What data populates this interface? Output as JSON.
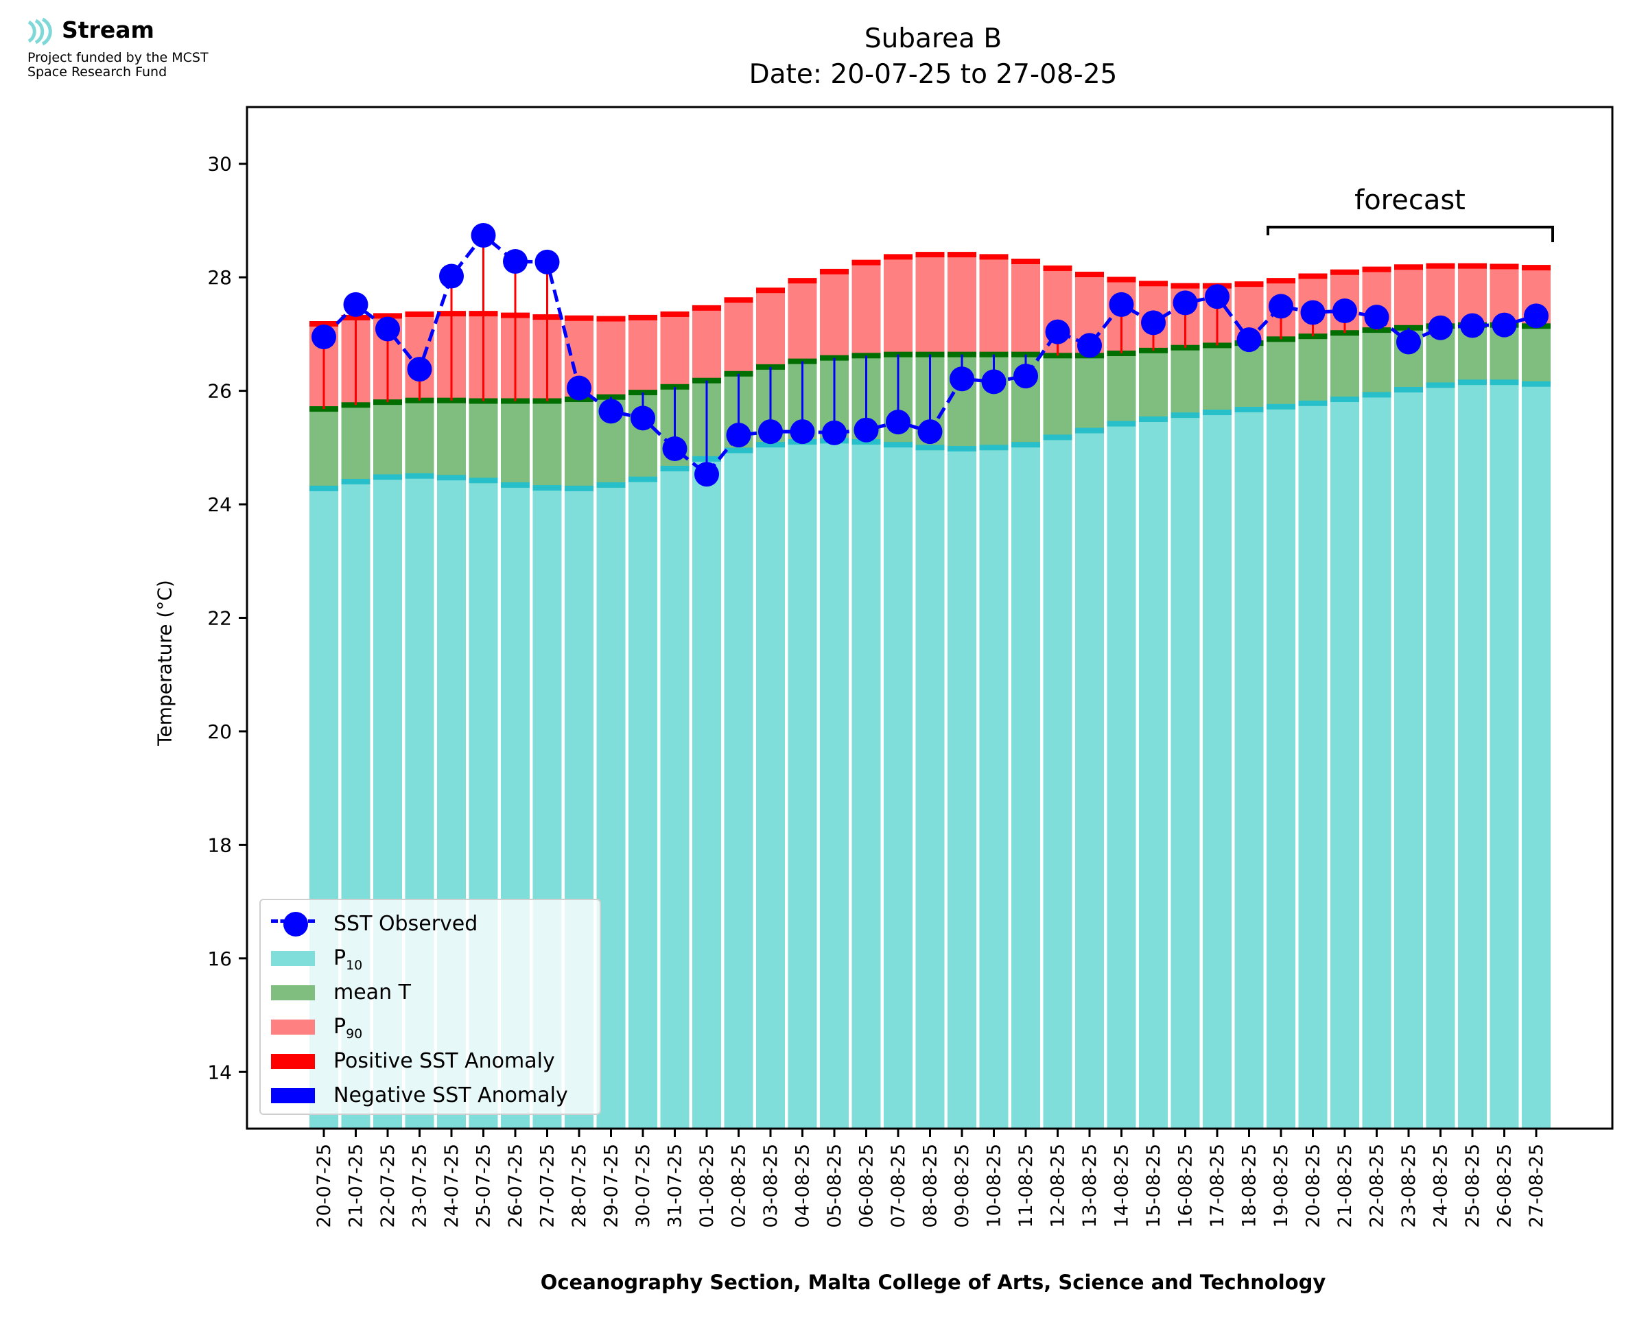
{
  "logo": {
    "name": "Stream",
    "funding_line_1": "Project funded by the MCST",
    "funding_line_2": "Space Research Fund"
  },
  "chart_data": {
    "type": "bar",
    "title": "Subarea B",
    "subtitle": "Date: 20-07-25 to 27-08-25",
    "xlabel": "Oceanography Section, Malta College of Arts, Science and Technology",
    "ylabel": "Temperature (°C)",
    "ylim": [
      13,
      31
    ],
    "yticks": [
      14,
      16,
      18,
      20,
      22,
      24,
      26,
      28,
      30
    ],
    "grid": false,
    "legend_position": "lower-left",
    "forecast_label": "forecast",
    "forecast_start": "19-08-25",
    "forecast_end": "27-08-25",
    "colors": {
      "p10": "#80deda",
      "p10_edge": "#27bfc9",
      "mean": "#80be80",
      "mean_edge": "#006e00",
      "p90": "#ff8080",
      "p90_edge": "#ff0000",
      "observed": "#0000ff",
      "positive_anomaly": "#ff0000",
      "negative_anomaly": "#0000ff"
    },
    "categories": [
      "20-07-25",
      "21-07-25",
      "22-07-25",
      "23-07-25",
      "24-07-25",
      "25-07-25",
      "26-07-25",
      "27-07-25",
      "28-07-25",
      "29-07-25",
      "30-07-25",
      "31-07-25",
      "01-08-25",
      "02-08-25",
      "03-08-25",
      "04-08-25",
      "05-08-25",
      "06-08-25",
      "07-08-25",
      "08-08-25",
      "09-08-25",
      "10-08-25",
      "11-08-25",
      "12-08-25",
      "13-08-25",
      "14-08-25",
      "15-08-25",
      "16-08-25",
      "17-08-25",
      "18-08-25",
      "19-08-25",
      "20-08-25",
      "21-08-25",
      "22-08-25",
      "23-08-25",
      "24-08-25",
      "25-08-25",
      "26-08-25",
      "27-08-25"
    ],
    "series": [
      {
        "name": "P10",
        "type": "bar",
        "values": [
          24.28,
          24.4,
          24.48,
          24.5,
          24.47,
          24.42,
          24.34,
          24.29,
          24.28,
          24.34,
          24.44,
          24.63,
          24.8,
          24.95,
          25.05,
          25.1,
          25.12,
          25.1,
          25.05,
          25.0,
          24.98,
          25.0,
          25.05,
          25.18,
          25.3,
          25.42,
          25.5,
          25.57,
          25.62,
          25.67,
          25.72,
          25.78,
          25.85,
          25.93,
          26.02,
          26.1,
          26.15,
          26.15,
          26.12
        ]
      },
      {
        "name": "mean T",
        "type": "bar",
        "values": [
          25.68,
          25.75,
          25.8,
          25.83,
          25.83,
          25.82,
          25.82,
          25.82,
          25.85,
          25.89,
          25.97,
          26.07,
          26.18,
          26.3,
          26.42,
          26.52,
          26.58,
          26.62,
          26.64,
          26.64,
          26.64,
          26.64,
          26.64,
          26.62,
          26.62,
          26.66,
          26.71,
          26.76,
          26.8,
          26.84,
          26.91,
          26.96,
          27.02,
          27.07,
          27.11,
          27.14,
          27.16,
          27.16,
          27.14
        ]
      },
      {
        "name": "P90",
        "type": "bar",
        "values": [
          27.18,
          27.29,
          27.32,
          27.35,
          27.36,
          27.36,
          27.33,
          27.3,
          27.28,
          27.27,
          27.29,
          27.35,
          27.46,
          27.6,
          27.77,
          27.94,
          28.1,
          28.26,
          28.36,
          28.4,
          28.4,
          28.36,
          28.28,
          28.16,
          28.05,
          27.96,
          27.89,
          27.85,
          27.85,
          27.88,
          27.94,
          28.02,
          28.09,
          28.14,
          28.18,
          28.2,
          28.2,
          28.19,
          28.17
        ]
      },
      {
        "name": "SST Observed",
        "type": "line",
        "values": [
          26.95,
          27.52,
          27.09,
          26.38,
          28.02,
          28.74,
          28.28,
          28.27,
          26.05,
          25.64,
          25.52,
          24.98,
          24.53,
          25.22,
          25.28,
          25.28,
          25.26,
          25.31,
          25.45,
          25.28,
          26.21,
          26.16,
          26.26,
          27.04,
          26.8,
          27.52,
          27.2,
          27.55,
          27.66,
          26.9,
          27.49,
          27.38,
          27.41,
          27.3,
          26.86,
          27.11,
          27.15,
          27.16,
          27.32
        ]
      }
    ],
    "legend": [
      "SST Observed",
      "P10",
      "mean T",
      "P90",
      "Positive SST Anomaly",
      "Negative SST Anomaly"
    ]
  }
}
